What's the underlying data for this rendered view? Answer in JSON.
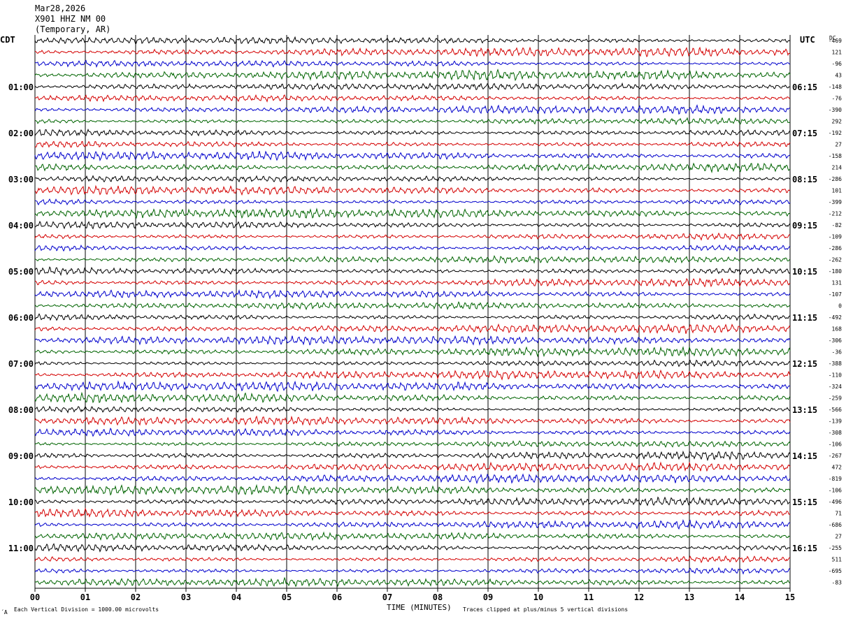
{
  "header": {
    "date": "Mar28,2026",
    "station": "X901 HHZ NM 00",
    "network": "(Temporary, AR)"
  },
  "left_axis_title": "CDT",
  "right_axis_title": "UTC",
  "dc_title": "DC",
  "footer": {
    "scale_note": "Each Vertical Division = 1000.00 microvolts",
    "xlabel": "TIME (MINUTES)",
    "clip_note": "Traces clipped at plus/minus 5 vertical divisions",
    "corner_mark": "´A"
  },
  "colors": {
    "black": "#000000",
    "red": "#d40000",
    "blue": "#0000cc",
    "green": "#006400",
    "grid": "#000000"
  },
  "chart_data": {
    "type": "line",
    "description_type": "helicorder",
    "x_range_minutes": [
      0,
      15
    ],
    "x_ticks": [
      "00",
      "01",
      "02",
      "03",
      "04",
      "05",
      "06",
      "07",
      "08",
      "09",
      "10",
      "11",
      "12",
      "13",
      "14",
      "15"
    ],
    "trace_count": 48,
    "trace_colors_cycle": [
      "black",
      "red",
      "blue",
      "green"
    ],
    "left_time_labels": [
      {
        "trace": 4,
        "label": "01:00"
      },
      {
        "trace": 8,
        "label": "02:00"
      },
      {
        "trace": 12,
        "label": "03:00"
      },
      {
        "trace": 16,
        "label": "04:00"
      },
      {
        "trace": 20,
        "label": "05:00"
      },
      {
        "trace": 24,
        "label": "06:00"
      },
      {
        "trace": 28,
        "label": "07:00"
      },
      {
        "trace": 32,
        "label": "08:00"
      },
      {
        "trace": 36,
        "label": "09:00"
      },
      {
        "trace": 40,
        "label": "10:00"
      },
      {
        "trace": 44,
        "label": "11:00"
      }
    ],
    "right_time_labels": [
      {
        "trace": 4,
        "label": "06:15"
      },
      {
        "trace": 8,
        "label": "07:15"
      },
      {
        "trace": 12,
        "label": "08:15"
      },
      {
        "trace": 16,
        "label": "09:15"
      },
      {
        "trace": 20,
        "label": "10:15"
      },
      {
        "trace": 24,
        "label": "11:15"
      },
      {
        "trace": 28,
        "label": "12:15"
      },
      {
        "trace": 32,
        "label": "13:15"
      },
      {
        "trace": 36,
        "label": "14:15"
      },
      {
        "trace": 40,
        "label": "15:15"
      },
      {
        "trace": 44,
        "label": "16:15"
      }
    ],
    "dc_offsets": [
      "-469",
      "121",
      "-96",
      "43",
      "-148",
      "-76",
      "-390",
      "292",
      "-192",
      "27",
      "-158",
      "214",
      "-286",
      "101",
      "-399",
      "-212",
      "-82",
      "-109",
      "-286",
      "-262",
      "-180",
      "131",
      "-107",
      "0",
      "-492",
      "168",
      "-306",
      "-36",
      "-388",
      "-110",
      "-324",
      "-259",
      "-566",
      "-139",
      "-308",
      "-106",
      "-267",
      "472",
      "-819",
      "-106",
      "-496",
      "71",
      "-686",
      "27",
      "-255",
      "511",
      "-695",
      "-83"
    ],
    "amplitude_divisions": 1,
    "clip_divisions": 5
  }
}
